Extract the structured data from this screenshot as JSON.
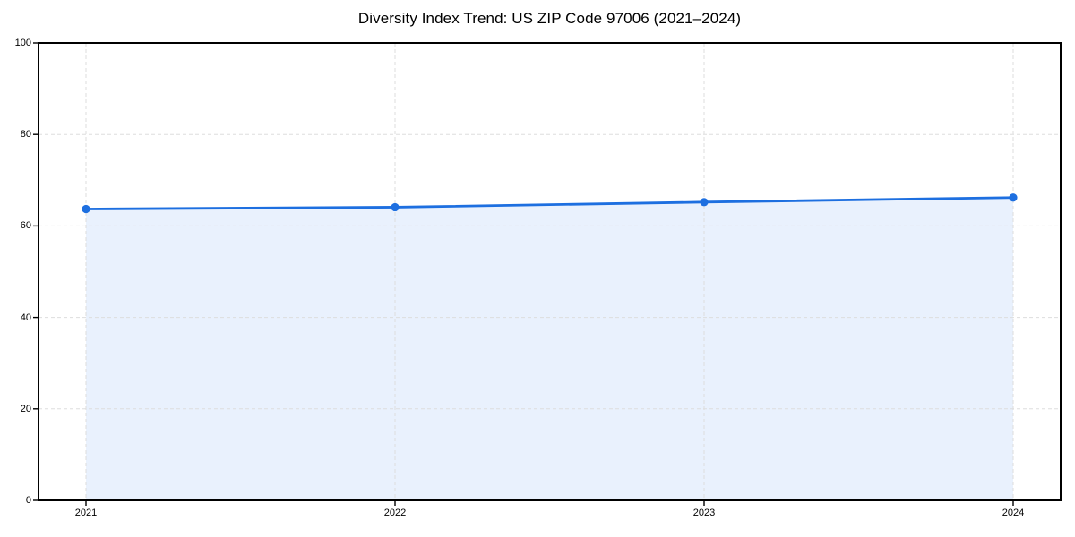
{
  "title": "Diversity Index Trend: US ZIP Code 97006 (2021–2024)",
  "chart_data": {
    "type": "line",
    "title": "Diversity Index Trend: US ZIP Code 97006 (2021–2024)",
    "x": [
      "2021",
      "2022",
      "2023",
      "2024"
    ],
    "series": [
      {
        "name": "Diversity Index",
        "values": [
          63.7,
          64.1,
          65.2,
          66.2
        ]
      }
    ],
    "xlabel": "",
    "ylabel": "",
    "ylim": [
      0,
      100
    ],
    "yticks": [
      0,
      20,
      40,
      60,
      80,
      100
    ],
    "grid": true,
    "grid_style": "dashed",
    "legend": false,
    "marker": "circle",
    "colors": {
      "line": "#1d6fe0",
      "marker": "#1d6fe0",
      "area_fill": "#e9f1fd",
      "grid": "#dddddd",
      "frame": "#000000",
      "background": "#ffffff"
    }
  }
}
